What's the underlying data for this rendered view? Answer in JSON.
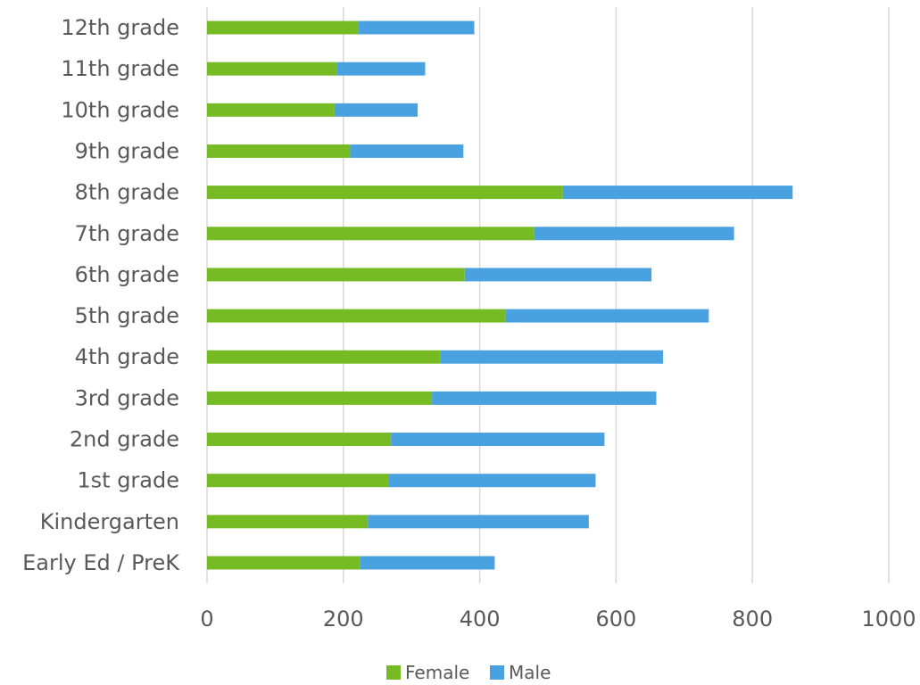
{
  "chart_data": {
    "type": "bar",
    "orientation": "horizontal",
    "stacked": true,
    "title": "",
    "xlabel": "",
    "ylabel": "",
    "categories": [
      "Early Ed / PreK",
      "Kindergarten",
      "1st grade",
      "2nd grade",
      "3rd grade",
      "4th grade",
      "5th grade",
      "6th grade",
      "7th grade",
      "8th grade",
      "9th grade",
      "10th grade",
      "11th grade",
      "12th grade"
    ],
    "series": [
      {
        "name": "Female",
        "color": "#77bb24",
        "values": [
          225,
          236,
          267,
          270,
          330,
          342,
          438,
          378,
          480,
          522,
          210,
          187,
          191,
          222
        ]
      },
      {
        "name": "Male",
        "color": "#4aa1e0",
        "values": [
          197,
          324,
          303,
          313,
          329,
          327,
          298,
          274,
          293,
          337,
          166,
          122,
          129,
          170
        ]
      }
    ],
    "xlim": [
      0,
      1000
    ],
    "xticks": [
      "0",
      "200",
      "400",
      "600",
      "800",
      "1000"
    ],
    "grid": true,
    "legend": {
      "position": "bottom",
      "entries": [
        "Female",
        "Male"
      ]
    }
  }
}
